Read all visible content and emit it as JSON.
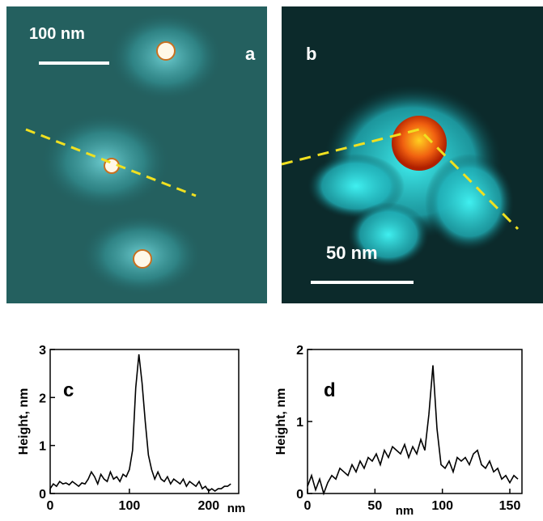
{
  "panels": [
    {
      "label": "a",
      "scale_bar": "100 nm"
    },
    {
      "label": "b",
      "scale_bar": "50 nm"
    }
  ],
  "chart_data": [
    {
      "type": "line",
      "title": "c",
      "x_label": "nm",
      "y_label": "Height, nm",
      "xlim": [
        0,
        238
      ],
      "ylim": [
        0,
        3
      ],
      "xticks": [
        0,
        100,
        200
      ],
      "yticks": [
        0,
        1,
        2,
        3
      ],
      "x": [
        0,
        4,
        8,
        12,
        16,
        20,
        24,
        28,
        32,
        36,
        40,
        44,
        48,
        52,
        56,
        60,
        64,
        68,
        72,
        76,
        80,
        84,
        88,
        92,
        96,
        100,
        104,
        108,
        112,
        116,
        120,
        124,
        128,
        132,
        136,
        140,
        144,
        148,
        152,
        156,
        160,
        164,
        168,
        172,
        176,
        180,
        184,
        188,
        192,
        196,
        200,
        204,
        208,
        212,
        216,
        220,
        224,
        228
      ],
      "series": [
        {
          "color": "#000000",
          "values": [
            0.1,
            0.2,
            0.15,
            0.25,
            0.2,
            0.22,
            0.18,
            0.25,
            0.2,
            0.15,
            0.22,
            0.2,
            0.3,
            0.45,
            0.35,
            0.2,
            0.4,
            0.3,
            0.25,
            0.45,
            0.3,
            0.35,
            0.25,
            0.4,
            0.35,
            0.5,
            0.9,
            2.2,
            2.9,
            2.3,
            1.5,
            0.8,
            0.5,
            0.3,
            0.45,
            0.3,
            0.25,
            0.35,
            0.2,
            0.3,
            0.25,
            0.2,
            0.3,
            0.15,
            0.25,
            0.2,
            0.15,
            0.25,
            0.1,
            0.15,
            0.05,
            0.1,
            0.05,
            0.1,
            0.1,
            0.15,
            0.15,
            0.2
          ]
        }
      ]
    },
    {
      "type": "line",
      "title": "d",
      "x_label": "nm",
      "y_label": "Height, nm",
      "xlim": [
        0,
        159
      ],
      "ylim": [
        0,
        2
      ],
      "xticks": [
        0,
        50,
        100,
        150
      ],
      "yticks": [
        0,
        1,
        2
      ],
      "x": [
        0,
        3,
        6,
        9,
        12,
        15,
        18,
        21,
        24,
        27,
        30,
        33,
        36,
        39,
        42,
        45,
        48,
        51,
        54,
        57,
        60,
        63,
        66,
        69,
        72,
        75,
        78,
        81,
        84,
        87,
        90,
        93,
        96,
        99,
        102,
        105,
        108,
        111,
        114,
        117,
        120,
        123,
        126,
        129,
        132,
        135,
        138,
        141,
        144,
        147,
        150,
        153,
        156
      ],
      "series": [
        {
          "color": "#000000",
          "values": [
            0.1,
            0.25,
            0.05,
            0.2,
            0.0,
            0.15,
            0.25,
            0.2,
            0.35,
            0.3,
            0.25,
            0.4,
            0.3,
            0.45,
            0.35,
            0.5,
            0.45,
            0.55,
            0.4,
            0.6,
            0.5,
            0.65,
            0.6,
            0.55,
            0.68,
            0.5,
            0.65,
            0.55,
            0.75,
            0.6,
            1.1,
            1.78,
            0.9,
            0.4,
            0.35,
            0.45,
            0.3,
            0.5,
            0.45,
            0.5,
            0.4,
            0.55,
            0.6,
            0.4,
            0.35,
            0.45,
            0.3,
            0.35,
            0.2,
            0.25,
            0.15,
            0.25,
            0.2
          ]
        }
      ]
    }
  ]
}
